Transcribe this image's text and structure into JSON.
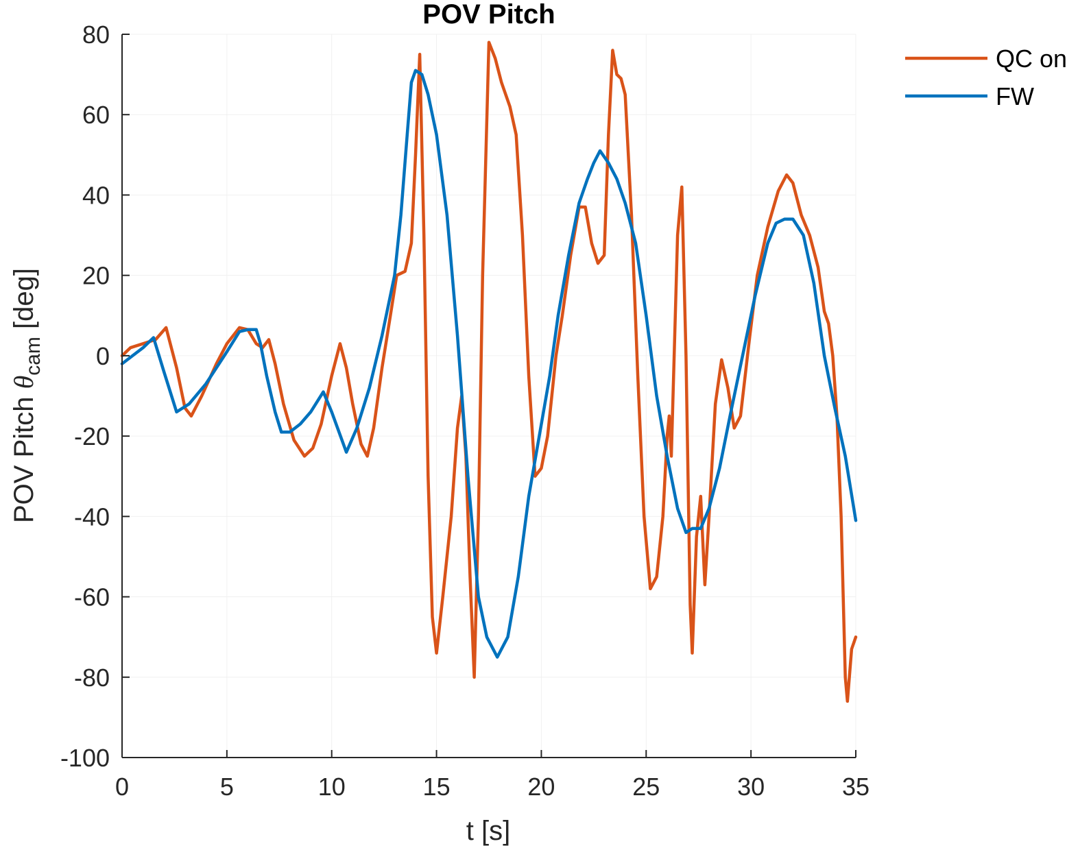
{
  "chart_data": {
    "type": "line",
    "title": "POV Pitch",
    "xlabel": "t [s]",
    "ylabel": {
      "main": "POV Pitch ",
      "symbol": "θ",
      "subscript": "cam",
      "unit": " [deg]"
    },
    "xlim": [
      0,
      35
    ],
    "ylim": [
      -100,
      80
    ],
    "xticks": [
      0,
      5,
      10,
      15,
      20,
      25,
      30,
      35
    ],
    "yticks": [
      -100,
      -80,
      -60,
      -40,
      -20,
      0,
      20,
      40,
      60,
      80
    ],
    "grid": true,
    "legend_position": "top-right outside",
    "series": [
      {
        "name": "QC on",
        "color": "#D95319",
        "points": [
          [
            0,
            0
          ],
          [
            0.4,
            2
          ],
          [
            1.0,
            3
          ],
          [
            1.6,
            4
          ],
          [
            2.1,
            7
          ],
          [
            2.6,
            -3
          ],
          [
            3.0,
            -13
          ],
          [
            3.3,
            -15
          ],
          [
            3.8,
            -10
          ],
          [
            4.5,
            -2
          ],
          [
            5.0,
            3
          ],
          [
            5.6,
            7
          ],
          [
            6.0,
            6.5
          ],
          [
            6.4,
            3
          ],
          [
            6.7,
            2
          ],
          [
            7.0,
            4
          ],
          [
            7.3,
            -2
          ],
          [
            7.7,
            -12
          ],
          [
            8.2,
            -21
          ],
          [
            8.7,
            -25
          ],
          [
            9.1,
            -23
          ],
          [
            9.5,
            -17
          ],
          [
            10.0,
            -5
          ],
          [
            10.4,
            3
          ],
          [
            10.7,
            -3
          ],
          [
            11.0,
            -12
          ],
          [
            11.4,
            -22
          ],
          [
            11.7,
            -25
          ],
          [
            12.0,
            -18
          ],
          [
            12.4,
            -3
          ],
          [
            12.8,
            10
          ],
          [
            13.1,
            20
          ],
          [
            13.5,
            21
          ],
          [
            13.8,
            28
          ],
          [
            14.0,
            50
          ],
          [
            14.2,
            75
          ],
          [
            14.4,
            30
          ],
          [
            14.6,
            -30
          ],
          [
            14.8,
            -65
          ],
          [
            15.0,
            -74
          ],
          [
            15.3,
            -60
          ],
          [
            15.7,
            -40
          ],
          [
            16.0,
            -18
          ],
          [
            16.2,
            -10
          ],
          [
            16.4,
            -25
          ],
          [
            16.6,
            -55
          ],
          [
            16.8,
            -80
          ],
          [
            17.0,
            -40
          ],
          [
            17.2,
            20
          ],
          [
            17.5,
            78
          ],
          [
            17.8,
            74
          ],
          [
            18.1,
            68
          ],
          [
            18.5,
            62
          ],
          [
            18.8,
            55
          ],
          [
            19.1,
            30
          ],
          [
            19.4,
            -5
          ],
          [
            19.7,
            -30
          ],
          [
            20.0,
            -28
          ],
          [
            20.3,
            -20
          ],
          [
            20.7,
            0
          ],
          [
            21.0,
            10
          ],
          [
            21.4,
            25
          ],
          [
            21.8,
            37
          ],
          [
            22.1,
            37
          ],
          [
            22.4,
            28
          ],
          [
            22.7,
            23
          ],
          [
            23.0,
            25
          ],
          [
            23.2,
            55
          ],
          [
            23.4,
            76
          ],
          [
            23.6,
            70
          ],
          [
            23.8,
            69
          ],
          [
            24.0,
            65
          ],
          [
            24.3,
            35
          ],
          [
            24.6,
            -5
          ],
          [
            24.9,
            -40
          ],
          [
            25.2,
            -58
          ],
          [
            25.5,
            -55
          ],
          [
            25.8,
            -40
          ],
          [
            26.0,
            -20
          ],
          [
            26.1,
            -15
          ],
          [
            26.2,
            -25
          ],
          [
            26.5,
            30
          ],
          [
            26.7,
            42
          ],
          [
            26.9,
            0
          ],
          [
            27.1,
            -62
          ],
          [
            27.2,
            -74
          ],
          [
            27.4,
            -45
          ],
          [
            27.6,
            -35
          ],
          [
            27.8,
            -57
          ],
          [
            28.0,
            -40
          ],
          [
            28.3,
            -12
          ],
          [
            28.6,
            -1
          ],
          [
            28.9,
            -8
          ],
          [
            29.2,
            -18
          ],
          [
            29.5,
            -15
          ],
          [
            29.9,
            3
          ],
          [
            30.3,
            20
          ],
          [
            30.8,
            32
          ],
          [
            31.3,
            41
          ],
          [
            31.7,
            45
          ],
          [
            32.0,
            43
          ],
          [
            32.4,
            35
          ],
          [
            32.8,
            30
          ],
          [
            33.2,
            22
          ],
          [
            33.5,
            11
          ],
          [
            33.7,
            8
          ],
          [
            33.9,
            0
          ],
          [
            34.1,
            -15
          ],
          [
            34.3,
            -40
          ],
          [
            34.5,
            -80
          ],
          [
            34.6,
            -86
          ],
          [
            34.8,
            -73
          ],
          [
            35.0,
            -70
          ]
        ]
      },
      {
        "name": "FW",
        "color": "#0072BD",
        "points": [
          [
            0,
            -2
          ],
          [
            0.5,
            0
          ],
          [
            1.0,
            2
          ],
          [
            1.5,
            4.5
          ],
          [
            2.0,
            -4
          ],
          [
            2.6,
            -14
          ],
          [
            3.2,
            -12
          ],
          [
            4.0,
            -7
          ],
          [
            4.5,
            -3
          ],
          [
            5.0,
            1
          ],
          [
            5.6,
            6
          ],
          [
            6.0,
            6.5
          ],
          [
            6.4,
            6.5
          ],
          [
            6.6,
            3
          ],
          [
            6.9,
            -5
          ],
          [
            7.3,
            -14
          ],
          [
            7.6,
            -19
          ],
          [
            8.0,
            -19
          ],
          [
            8.5,
            -17
          ],
          [
            9.0,
            -14
          ],
          [
            9.6,
            -9
          ],
          [
            10.0,
            -14
          ],
          [
            10.7,
            -24
          ],
          [
            11.2,
            -18
          ],
          [
            11.8,
            -8
          ],
          [
            12.4,
            5
          ],
          [
            13.0,
            20
          ],
          [
            13.3,
            35
          ],
          [
            13.6,
            55
          ],
          [
            13.8,
            68
          ],
          [
            14.0,
            71
          ],
          [
            14.3,
            70
          ],
          [
            14.6,
            65
          ],
          [
            15.0,
            55
          ],
          [
            15.5,
            35
          ],
          [
            16.0,
            5
          ],
          [
            16.5,
            -30
          ],
          [
            17.0,
            -60
          ],
          [
            17.4,
            -70
          ],
          [
            17.9,
            -75
          ],
          [
            18.4,
            -70
          ],
          [
            18.9,
            -55
          ],
          [
            19.4,
            -35
          ],
          [
            19.9,
            -20
          ],
          [
            20.4,
            -5
          ],
          [
            20.8,
            10
          ],
          [
            21.3,
            25
          ],
          [
            21.8,
            38
          ],
          [
            22.2,
            44
          ],
          [
            22.5,
            48
          ],
          [
            22.8,
            51
          ],
          [
            23.2,
            48
          ],
          [
            23.6,
            44
          ],
          [
            24.0,
            38
          ],
          [
            24.5,
            28
          ],
          [
            25.0,
            10
          ],
          [
            25.5,
            -10
          ],
          [
            26.0,
            -25
          ],
          [
            26.5,
            -38
          ],
          [
            26.9,
            -44
          ],
          [
            27.2,
            -43
          ],
          [
            27.6,
            -43
          ],
          [
            28.0,
            -38
          ],
          [
            28.5,
            -28
          ],
          [
            29.0,
            -15
          ],
          [
            29.6,
            0
          ],
          [
            30.2,
            15
          ],
          [
            30.8,
            28
          ],
          [
            31.2,
            33
          ],
          [
            31.6,
            34
          ],
          [
            32.0,
            34
          ],
          [
            32.5,
            30
          ],
          [
            33.0,
            18
          ],
          [
            33.5,
            0
          ],
          [
            34.0,
            -13
          ],
          [
            34.5,
            -25
          ],
          [
            35.0,
            -41
          ]
        ]
      }
    ]
  }
}
